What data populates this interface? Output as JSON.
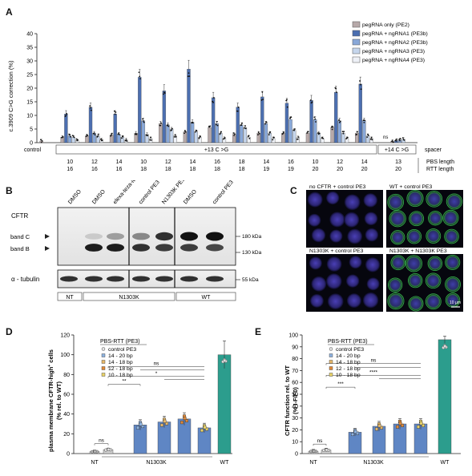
{
  "panelA": {
    "letter": "A",
    "ylabel": "c.3909 C>G correction (%)",
    "yticks": [
      "0",
      "5",
      "10",
      "15",
      "20",
      "25",
      "30",
      "35",
      "40"
    ],
    "legend": [
      {
        "label": "pegRNA only (PE2)",
        "color": "#b7a9a9"
      },
      {
        "label": "pegRNA + ngRNA1 (PE3b)",
        "color": "#4c6fb0"
      },
      {
        "label": "pegRNA + ngRNA2 (PE3b)",
        "color": "#89a8d8"
      },
      {
        "label": "pegRNA + ngRNA3 (PE3)",
        "color": "#c6d6ec"
      },
      {
        "label": "pegRNA + ngRNA4 (PE3)",
        "color": "#eef1f7"
      }
    ],
    "control_label": "control",
    "group13_label": "+13 C >G",
    "group14_label": "+14 C >G",
    "spacer_label": "spacer",
    "pbs_label": "PBS length",
    "rtt_label": "RTT length",
    "ns_label": "ns",
    "pbs": [
      "10",
      "12",
      "14",
      "10",
      "12",
      "14",
      "16",
      "18",
      "14",
      "16",
      "10",
      "12",
      "14",
      "13"
    ],
    "rtt": [
      "16",
      "16",
      "16",
      "18",
      "18",
      "18",
      "18",
      "18",
      "19",
      "19",
      "20",
      "20",
      "20",
      "20"
    ]
  },
  "chart_data": [
    {
      "type": "bar",
      "title": "",
      "ylabel": "c.3909 C>G correction (%)",
      "ylim": [
        0,
        40
      ],
      "categories": [
        "control",
        "10/16",
        "12/16",
        "14/16",
        "10/18",
        "12/18",
        "14/18",
        "16/18",
        "18/18",
        "14/19",
        "16/19",
        "10/20",
        "12/20",
        "14/20",
        "13/20 (+14 C>G)"
      ],
      "series": [
        {
          "name": "pegRNA only (PE2)",
          "values": [
            0.6,
            2.0,
            2.5,
            2.8,
            3.5,
            7.0,
            4.0,
            5.5,
            3.0,
            3.5,
            3.5,
            3.5,
            5.5,
            3.5,
            0.5
          ]
        },
        {
          "name": "pegRNA + ngRNA1 (PE3b)",
          "values": [
            null,
            10.5,
            13.0,
            10.5,
            24.0,
            19.0,
            27.0,
            16.5,
            13.0,
            16.8,
            14.5,
            15.5,
            18.5,
            21.5,
            0.8
          ]
        },
        {
          "name": "pegRNA + ngRNA2 (PE3b)",
          "values": [
            null,
            2.5,
            3.5,
            3.0,
            8.0,
            6.5,
            7.5,
            7.0,
            6.5,
            7.0,
            8.5,
            8.5,
            8.0,
            8.0,
            1.0
          ]
        },
        {
          "name": "pegRNA + ngRNA3 (PE3)",
          "values": [
            null,
            2.0,
            2.5,
            2.0,
            3.0,
            5.0,
            4.0,
            3.5,
            5.5,
            3.5,
            4.5,
            3.5,
            3.5,
            2.5,
            1.2
          ]
        },
        {
          "name": "pegRNA + ngRNA4 (PE3)",
          "values": [
            null,
            0.8,
            1.0,
            1.0,
            1.5,
            2.5,
            2.0,
            1.5,
            2.0,
            1.5,
            1.8,
            1.5,
            1.5,
            1.5,
            null
          ]
        }
      ]
    },
    {
      "type": "bar",
      "title": "PBS-RTT (PE3)",
      "ylabel": "plasma membrane CFTR-high+ cells (% rel. to WT)",
      "ylim": [
        0,
        120
      ],
      "categories": [
        "NT",
        "control PE3",
        "14 - 20 bp",
        "14 - 18 bp",
        "12 - 18 bp",
        "10 - 18 bp",
        "WT"
      ],
      "values": [
        2,
        4,
        29,
        32,
        35,
        26,
        100
      ],
      "group_label": "N1303K"
    },
    {
      "type": "bar",
      "title": "PBS-RTT (PE3)",
      "ylabel": "CFTR function rel. to WT (% I-F/F0)",
      "ylim": [
        0,
        100
      ],
      "categories": [
        "NT",
        "control PE3",
        "14 - 20 bp",
        "14 - 18 bp",
        "12 - 18 bp",
        "10 - 18 bp",
        "WT"
      ],
      "values": [
        2,
        3,
        18,
        23,
        25,
        25,
        96
      ],
      "group_label": "N1303K"
    }
  ],
  "panelB": {
    "letter": "B",
    "lanes": [
      "DMSO",
      "DMSO",
      "elexa-teza-iva",
      "control PE3",
      "N1303K PE3",
      "DMSO",
      "control PE3"
    ],
    "cftr_label": "CFTR",
    "bandC": "band C",
    "bandB": "band B",
    "kda180": "180 kDa",
    "kda130": "130 kDa",
    "tubulin": "α - tubulin",
    "kda55": "55 kDa",
    "groups": [
      "NT",
      "N1303K",
      "WT"
    ]
  },
  "panelC": {
    "letter": "C",
    "titles": [
      "no CFTR + control PE3",
      "WT + control PE3",
      "N1303K + control PE3",
      "N1303K + N1303K PE3"
    ],
    "scale": "10 µm"
  },
  "panelD": {
    "letter": "D",
    "legend_title": "PBS-RTT (PE3)",
    "legend": [
      "control PE3",
      "14 - 20 bp",
      "14 - 18 bp",
      "12 - 18 bp",
      "10 - 18 bp"
    ],
    "yticks": [
      "0",
      "20",
      "40",
      "60",
      "80",
      "100",
      "120"
    ],
    "ylabel1": "plasma membrane CFTR-high",
    "ylabel2": "+",
    "ylabel3": " cells",
    "ylabel4": "(% rel. to WT)",
    "sig": [
      "ns",
      "**",
      "*",
      "ns"
    ],
    "xlabels": [
      "NT",
      "N1303K",
      "WT"
    ]
  },
  "panelE": {
    "letter": "E",
    "legend_title": "PBS-RTT (PE3)",
    "legend": [
      "control PE3",
      "14 - 20 bp",
      "14 - 18 bp",
      "12 - 18 bp",
      "10 - 18 bp"
    ],
    "yticks": [
      "0",
      "10",
      "20",
      "30",
      "40",
      "50",
      "60",
      "70",
      "80",
      "90",
      "100"
    ],
    "ylabel1": "CFTR function rel. to WT",
    "ylabel2": "(% I-F/F0)",
    "sig": [
      "ns",
      "***",
      "****",
      "ns"
    ],
    "xlabels": [
      "NT",
      "N1303K",
      "WT"
    ]
  },
  "colors": {
    "nt": "#d0d0d0",
    "ctrl": "#c9c9c9",
    "b1420": "#5f86c4",
    "b1418": "#5f86c4",
    "b1218": "#5f86c4",
    "b1018": "#5f86c4",
    "wt": "#2c9d8d",
    "dot1420": "#8fb3e0",
    "dot1418": "#e6b86a",
    "dot1218": "#e08a3a",
    "dot1018": "#e9d36a"
  }
}
